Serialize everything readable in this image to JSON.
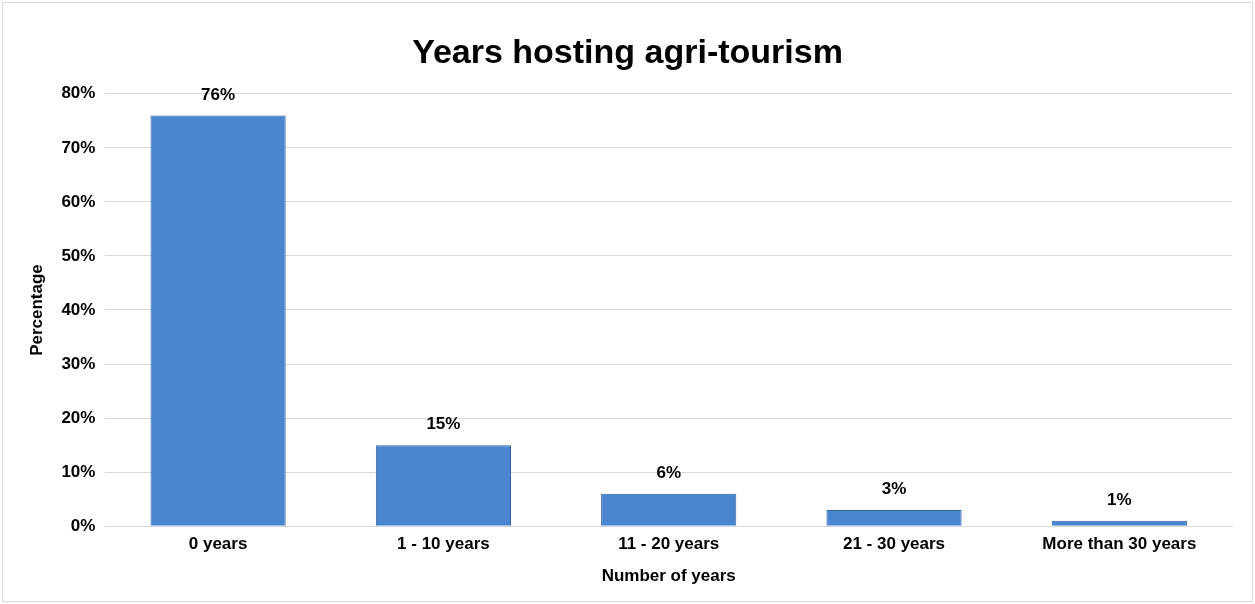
{
  "chart_data": {
    "type": "bar",
    "title": "Years hosting agri-tourism",
    "xlabel": "Number of years",
    "ylabel": "Percentage",
    "categories": [
      "0 years",
      "1 - 10 years",
      "11 - 20 years",
      "21 - 30 years",
      "More than 30 years"
    ],
    "values": [
      76,
      15,
      6,
      3,
      1
    ],
    "value_labels": [
      "76%",
      "15%",
      "6%",
      "3%",
      "1%"
    ],
    "color": "#4a86d0",
    "ylim": [
      0,
      80
    ],
    "yticks": [
      {
        "value": 0,
        "label": "0%"
      },
      {
        "value": 10,
        "label": "10%"
      },
      {
        "value": 20,
        "label": "20%"
      },
      {
        "value": 30,
        "label": "30%"
      },
      {
        "value": 40,
        "label": "40%"
      },
      {
        "value": 50,
        "label": "50%"
      },
      {
        "value": 60,
        "label": "60%"
      },
      {
        "value": 70,
        "label": "70%"
      },
      {
        "value": 80,
        "label": "80%"
      }
    ],
    "grid": "y",
    "legend": false
  }
}
